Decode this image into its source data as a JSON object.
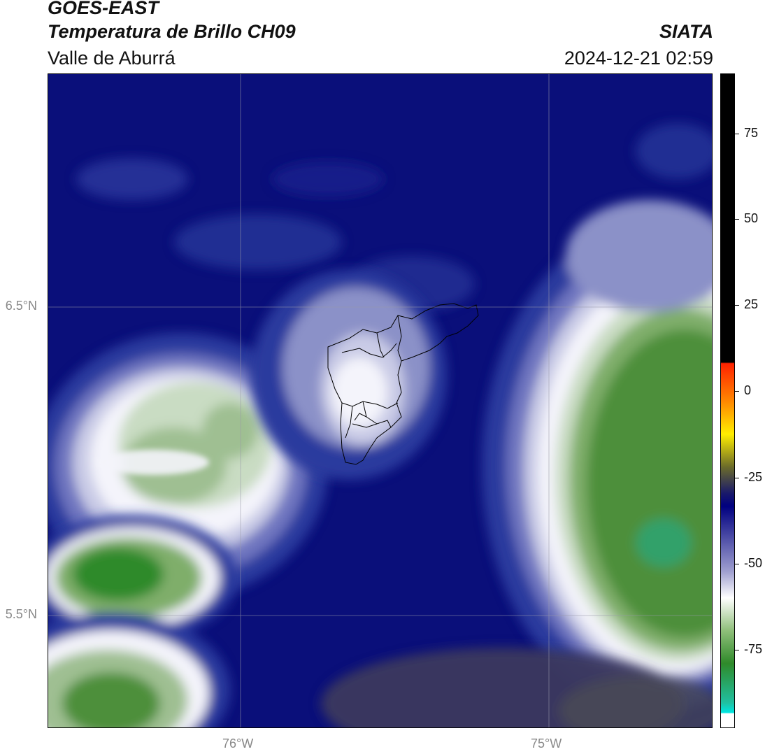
{
  "header": {
    "satellite": "GOES-EAST",
    "product": "Temperatura de Brillo CH09",
    "region": "Valle de Aburrá",
    "agency": "SIATA",
    "datetime": "2024-12-21 02:59"
  },
  "map": {
    "lat_ticks": [
      "6.5°N",
      "5.5°N"
    ],
    "lon_ticks": [
      "76°W",
      "75°W"
    ],
    "colors": {
      "deep_blue": "#0a0f7a",
      "mid_blue": "#2b3a9e",
      "lavender": "#9aa0cf",
      "white": "#f4f4fb",
      "pale_green": "#c9dcc3",
      "green": "#4e8f3a",
      "deep_green": "#2f8a2a",
      "teal": "#2aa577",
      "dark_gray": "#3b3a5e"
    }
  },
  "colorbar": {
    "tick_labels": [
      "75",
      "50",
      "25",
      "0",
      "-25",
      "-50",
      "-75"
    ],
    "colors": {
      "black": "#000000",
      "red": "#ff2200",
      "orange": "#ff8800",
      "yellow": "#ffee00",
      "olive": "#6b6b2a",
      "navy": "#000080",
      "lavender": "#a0a0d0",
      "white": "#ffffff",
      "green": "#2f8a2a",
      "cyan": "#00e5e0"
    }
  }
}
